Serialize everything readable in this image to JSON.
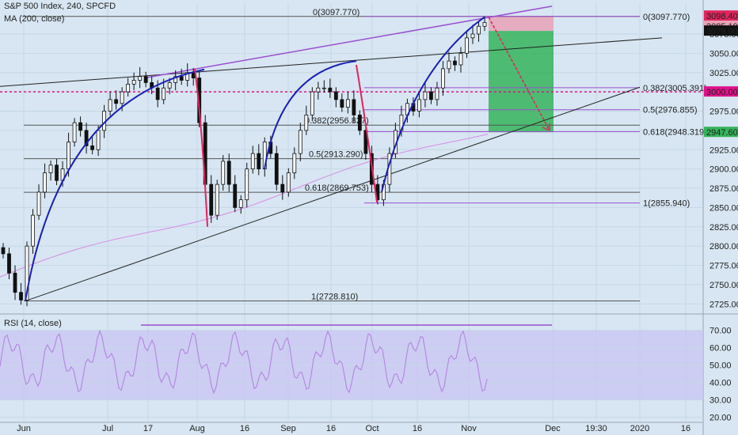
{
  "header": {
    "title": "S&P 500 Index, 240, SPCFD",
    "indicator": "MA (200, close)"
  },
  "rsi_header": {
    "label": "RSI (14, close)"
  },
  "colors": {
    "background": "#d7e6f2",
    "candle": "#111111",
    "blue_curve": "#1a1fb5",
    "red_curve": "#e0245e",
    "fib": "#9b4fd0",
    "ma": "#d98be6",
    "profit": "#35b35a",
    "loss": "#e8a2b6",
    "dashed": "#e0128a",
    "rsi_band": "#c9c2f4",
    "rsi_line": "#b58ae0"
  },
  "chart_data": {
    "type": "candlestick",
    "title": "S&P 500 Index, 240, SPCFD",
    "y_axis": {
      "min": 2715,
      "max": 3115,
      "ticks": [
        2725,
        2750,
        2775,
        2800,
        2825,
        2850,
        2875,
        2900,
        2925,
        2950,
        2975,
        3000,
        3025,
        3050,
        3075
      ]
    },
    "x_axis": {
      "ticks": [
        "Jun",
        "Jul",
        "17",
        "Aug",
        "16",
        "Sep",
        "16",
        "Oct",
        "16",
        "Nov",
        "Dec",
        "19:30",
        "2020",
        "16"
      ]
    },
    "price_labels": [
      {
        "text": "3098.400",
        "value": 3098.4,
        "bg": "#e0245e",
        "fg": "#ffffff"
      },
      {
        "text": "3085.190",
        "value": 3085.19,
        "bg": "#e8a2b6",
        "fg": "#ffffff"
      },
      {
        "text": "3079.000",
        "value": 3079.0,
        "bg": "#111111",
        "fg": "#ffffff"
      },
      {
        "text": "3000.000",
        "value": 3000.0,
        "bg": "#e0128a",
        "fg": "#ffffff"
      },
      {
        "text": "2947.600",
        "value": 2947.6,
        "bg": "#35b35a",
        "fg": "#ffffff"
      }
    ],
    "fib_left": [
      {
        "text": "0(3097.770)",
        "value": 3097.77
      },
      {
        "text": "0.382(2956.827)",
        "value": 2956.827
      },
      {
        "text": "0.5(2913.290)",
        "value": 2913.29
      },
      {
        "text": "0.618(2869.753)",
        "value": 2869.753
      },
      {
        "text": "1(2728.810)",
        "value": 2728.81
      }
    ],
    "fib_right": [
      {
        "text": "0(3097.770)",
        "value": 3097.77
      },
      {
        "text": "0.382(3005.391)",
        "value": 3005.391
      },
      {
        "text": "0.5(2976.855)",
        "value": 2976.855
      },
      {
        "text": "0.618(2948.319)",
        "value": 2948.319
      },
      {
        "text": "1(2855.940)",
        "value": 2855.94
      }
    ],
    "rsi": {
      "label": "RSI (14, close)",
      "ticks": [
        20,
        30,
        40,
        50,
        60,
        70
      ],
      "tick_labels": [
        "20.00",
        "30.00",
        "40.00",
        "50.00",
        "60.00",
        "70.00"
      ],
      "band": [
        30,
        70
      ],
      "range": [
        18,
        78
      ]
    },
    "closes": [
      2790,
      2765,
      2740,
      2730,
      2800,
      2840,
      2870,
      2895,
      2905,
      2885,
      2900,
      2935,
      2960,
      2950,
      2930,
      2925,
      2950,
      2975,
      2990,
      2985,
      3000,
      3010,
      3015,
      3020,
      3012,
      3005,
      2990,
      3005,
      3012,
      3020,
      3015,
      3025,
      3018,
      2960,
      2880,
      2840,
      2880,
      2910,
      2880,
      2850,
      2860,
      2900,
      2920,
      2900,
      2935,
      2920,
      2880,
      2870,
      2895,
      2920,
      2950,
      2970,
      3000,
      3005,
      3005,
      3000,
      2990,
      2980,
      2990,
      2970,
      2950,
      2920,
      2880,
      2860,
      2880,
      2920,
      2950,
      2970,
      2985,
      2975,
      2990,
      3000,
      2990,
      3005,
      3030,
      3040,
      3035,
      3050,
      3070,
      3075,
      3085,
      3090
    ]
  }
}
